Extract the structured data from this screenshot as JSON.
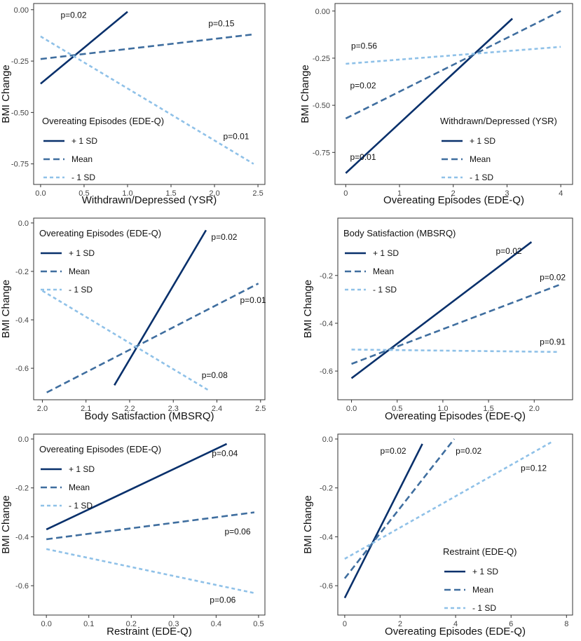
{
  "colors": {
    "plus": "#08306b",
    "mean": "#3f6e9f",
    "minus": "#8fc1e8",
    "frame": "#333333",
    "tick": "#333333"
  },
  "chart_data": [
    {
      "type": "line",
      "ylabel": "BMI Change",
      "xlabel": "Withdrawn/Depressed (YSR)",
      "xlim": [
        -0.08,
        2.58
      ],
      "ylim": [
        -0.85,
        0.03
      ],
      "xticks": [
        0.0,
        0.5,
        1.0,
        1.5,
        2.0,
        2.5
      ],
      "xtick_labels": [
        "0.0",
        "0.5",
        "1.0",
        "1.5",
        "2.0",
        "2.5"
      ],
      "yticks": [
        0.0,
        -0.25,
        -0.5,
        -0.75
      ],
      "ytick_labels": [
        "0.00",
        "-0.25",
        "-0.50",
        "-0.75"
      ],
      "legend": {
        "title": "Overeating Episodes (EDE-Q)",
        "position": "left"
      },
      "series": [
        {
          "name": "+ 1 SD",
          "style": "plus",
          "x": [
            0.0,
            1.0
          ],
          "y": [
            -0.36,
            -0.01
          ],
          "p_label": "p=0.02",
          "p_x": 0.23,
          "p_y": -0.04
        },
        {
          "name": "Mean",
          "style": "mean",
          "x": [
            0.0,
            2.45
          ],
          "y": [
            -0.24,
            -0.12
          ],
          "p_label": "p=0.15",
          "p_x": 1.93,
          "p_y": -0.08
        },
        {
          "name": "- 1 SD",
          "style": "minus",
          "x": [
            0.0,
            2.45
          ],
          "y": [
            -0.13,
            -0.75
          ],
          "p_label": "p=0.01",
          "p_x": 2.1,
          "p_y": -0.63
        }
      ]
    },
    {
      "type": "line",
      "ylabel": "BMI Change",
      "xlabel": "Overeating Episodes (EDE-Q)",
      "xlim": [
        -0.2,
        4.22
      ],
      "ylim": [
        -0.92,
        0.04
      ],
      "xticks": [
        0,
        1,
        2,
        3,
        4
      ],
      "xtick_labels": [
        "0",
        "1",
        "2",
        "3",
        "4"
      ],
      "yticks": [
        0.0,
        -0.25,
        -0.5,
        -0.75
      ],
      "ytick_labels": [
        "0.00",
        "-0.25",
        "-0.50",
        "-0.75"
      ],
      "legend": {
        "title": "Withdrawn/Depressed (YSR)",
        "position": "bottom-right"
      },
      "series": [
        {
          "name": "+ 1 SD",
          "style": "plus",
          "x": [
            0.0,
            3.1
          ],
          "y": [
            -0.86,
            -0.04
          ],
          "p_label": "p=0.01",
          "p_x": 0.08,
          "p_y": -0.79
        },
        {
          "name": "Mean",
          "style": "mean",
          "x": [
            0.0,
            4.0
          ],
          "y": [
            -0.57,
            0.0
          ],
          "p_label": "p=0.02",
          "p_x": 0.08,
          "p_y": -0.41
        },
        {
          "name": "- 1 SD",
          "style": "minus",
          "x": [
            0.0,
            4.0
          ],
          "y": [
            -0.28,
            -0.19
          ],
          "p_label": "p=0.56",
          "p_x": 0.1,
          "p_y": -0.2
        }
      ]
    },
    {
      "type": "line",
      "ylabel": "BMI Change",
      "xlabel": "Body Satisfaction (MBSRQ)",
      "xlim": [
        1.98,
        2.51
      ],
      "ylim": [
        -0.73,
        0.02
      ],
      "xticks": [
        2.0,
        2.1,
        2.2,
        2.3,
        2.4,
        2.5
      ],
      "xtick_labels": [
        "2.0",
        "2.1",
        "2.2",
        "2.3",
        "2.4",
        "2.5"
      ],
      "yticks": [
        0.0,
        -0.2,
        -0.4,
        -0.6
      ],
      "ytick_labels": [
        "0.0",
        "-0.2",
        "-0.4",
        "-0.6"
      ],
      "legend": {
        "title": "Overeating Episodes (EDE-Q)",
        "position": "top-left"
      },
      "series": [
        {
          "name": "+ 1 SD",
          "style": "plus",
          "x": [
            2.165,
            2.375
          ],
          "y": [
            -0.67,
            -0.03
          ],
          "p_label": "p=0.02",
          "p_x": 2.387,
          "p_y": -0.07
        },
        {
          "name": "Mean",
          "style": "mean",
          "x": [
            2.01,
            2.495
          ],
          "y": [
            -0.7,
            -0.25
          ],
          "p_label": "p=0.01",
          "p_x": 2.453,
          "p_y": -0.33
        },
        {
          "name": "- 1 SD",
          "style": "minus",
          "x": [
            2.0,
            2.38
          ],
          "y": [
            -0.28,
            -0.69
          ],
          "p_label": "p=0.08",
          "p_x": 2.365,
          "p_y": -0.64
        }
      ]
    },
    {
      "type": "line",
      "ylabel": "BMI Change",
      "xlabel": "Overeating Episodes (EDE-Q)",
      "xlim": [
        -0.15,
        2.42
      ],
      "ylim": [
        -0.72,
        0.04
      ],
      "xticks": [
        0.0,
        0.5,
        1.0,
        1.5,
        2.0
      ],
      "xtick_labels": [
        "0.0",
        "0.5",
        "1.0",
        "1.5",
        "2.0"
      ],
      "yticks": [
        -0.2,
        -0.4,
        -0.6
      ],
      "ytick_labels": [
        "-0.2",
        "-0.4",
        "-0.6"
      ],
      "legend": {
        "title": "Body Satisfaction (MBSRQ)",
        "position": "top-left"
      },
      "series": [
        {
          "name": "+ 1 SD",
          "style": "plus",
          "x": [
            0.0,
            1.97
          ],
          "y": [
            -0.63,
            -0.06
          ],
          "p_label": "p=0.02",
          "p_x": 1.58,
          "p_y": -0.11
        },
        {
          "name": "Mean",
          "style": "mean",
          "x": [
            0.0,
            2.27
          ],
          "y": [
            -0.57,
            -0.24
          ],
          "p_label": "p=0.02",
          "p_x": 2.06,
          "p_y": -0.22
        },
        {
          "name": "- 1 SD",
          "style": "minus",
          "x": [
            0.0,
            2.27
          ],
          "y": [
            -0.51,
            -0.52
          ],
          "p_label": "p=0.91",
          "p_x": 2.06,
          "p_y": -0.49
        }
      ]
    },
    {
      "type": "line",
      "ylabel": "BMI Change",
      "xlabel": "Restraint (EDE-Q)",
      "xlim": [
        -0.03,
        0.515
      ],
      "ylim": [
        -0.72,
        0.02
      ],
      "xticks": [
        0.0,
        0.1,
        0.2,
        0.3,
        0.4,
        0.5
      ],
      "xtick_labels": [
        "0.0",
        "0.1",
        "0.2",
        "0.3",
        "0.4",
        "0.5"
      ],
      "yticks": [
        0.0,
        -0.2,
        -0.4,
        -0.6
      ],
      "ytick_labels": [
        "0.0",
        "-0.2",
        "-0.4",
        "-0.6"
      ],
      "legend": {
        "title": "Overeating Episodes (EDE-Q)",
        "position": "top-left"
      },
      "series": [
        {
          "name": "+ 1 SD",
          "style": "plus",
          "x": [
            0.0,
            0.425
          ],
          "y": [
            -0.37,
            -0.02
          ],
          "p_label": "p=0.04",
          "p_x": 0.39,
          "p_y": -0.07
        },
        {
          "name": "Mean",
          "style": "mean",
          "x": [
            0.0,
            0.49
          ],
          "y": [
            -0.41,
            -0.3
          ],
          "p_label": "p=0.06",
          "p_x": 0.42,
          "p_y": -0.39
        },
        {
          "name": "- 1 SD",
          "style": "minus",
          "x": [
            0.0,
            0.49
          ],
          "y": [
            -0.45,
            -0.63
          ],
          "p_label": "p=0.06",
          "p_x": 0.385,
          "p_y": -0.67
        }
      ]
    },
    {
      "type": "line",
      "ylabel": "BMI Change",
      "xlabel": "Overeating Episodes (EDE-Q)",
      "xlim": [
        -0.25,
        8.22
      ],
      "ylim": [
        -0.72,
        0.02
      ],
      "xticks": [
        0,
        2,
        4,
        6,
        8
      ],
      "xtick_labels": [
        "0",
        "2",
        "4",
        "6",
        "8"
      ],
      "yticks": [
        0.0,
        -0.2,
        -0.4,
        -0.6
      ],
      "ytick_labels": [
        "0.0",
        "-0.2",
        "-0.4",
        "-0.6"
      ],
      "legend": {
        "title": "Restraint (EDE-Q)",
        "position": "bottom-right"
      },
      "series": [
        {
          "name": "+ 1 SD",
          "style": "plus",
          "x": [
            0.0,
            2.8
          ],
          "y": [
            -0.65,
            -0.02
          ],
          "p_label": "p=0.02",
          "p_x": 1.28,
          "p_y": -0.06
        },
        {
          "name": "Mean",
          "style": "mean",
          "x": [
            0.0,
            3.95
          ],
          "y": [
            -0.57,
            0.0
          ],
          "p_label": "p=0.02",
          "p_x": 4.0,
          "p_y": -0.06
        },
        {
          "name": "- 1 SD",
          "style": "minus",
          "x": [
            0.0,
            7.5
          ],
          "y": [
            -0.49,
            -0.01
          ],
          "p_label": "p=0.12",
          "p_x": 6.35,
          "p_y": -0.13
        }
      ]
    }
  ]
}
